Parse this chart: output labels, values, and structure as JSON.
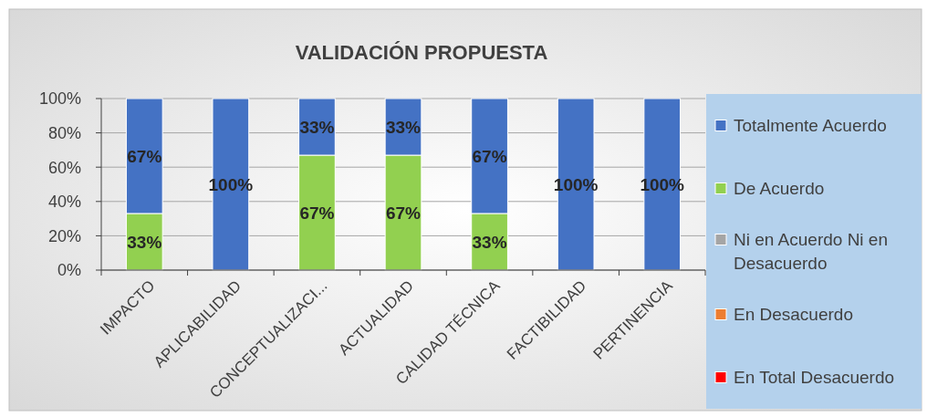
{
  "chart_data": {
    "type": "bar",
    "title": "VALIDACIÓN PROPUESTA",
    "stacked": true,
    "grid": "y",
    "legend": "right",
    "categories": [
      "IMPACTO",
      "APLICABILIDAD",
      "CONCEPTUALIZACI...",
      "ACTUALIDAD",
      "CALIDAD TÉCNICA",
      "FACTIBILIDAD",
      "PERTINENCIA"
    ],
    "ylim": [
      0,
      100
    ],
    "yticks": [
      {
        "value": 0,
        "label": "0%"
      },
      {
        "value": 20,
        "label": "20%"
      },
      {
        "value": 40,
        "label": "40%"
      },
      {
        "value": 60,
        "label": "60%"
      },
      {
        "value": 80,
        "label": "80%"
      },
      {
        "value": 100,
        "label": "100%"
      }
    ],
    "series": [
      {
        "name": "En Total Desacuerdo",
        "color": "#ff0000",
        "values": [
          0,
          0,
          0,
          0,
          0,
          0,
          0
        ]
      },
      {
        "name": "En Desacuerdo",
        "color": "#ed7d31",
        "values": [
          0,
          0,
          0,
          0,
          0,
          0,
          0
        ]
      },
      {
        "name": "Ni en Acuerdo Ni en Desacuerdo",
        "color": "#a5a5a5",
        "values": [
          0,
          0,
          0,
          0,
          0,
          0,
          0
        ]
      },
      {
        "name": "De Acuerdo",
        "color": "#92d050",
        "values": [
          33,
          0,
          67,
          67,
          33,
          0,
          0
        ],
        "value_labels": [
          "33%",
          null,
          "67%",
          "67%",
          "33%",
          null,
          null
        ]
      },
      {
        "name": "Totalmente Acuerdo",
        "color": "#4472c4",
        "values": [
          67,
          100,
          33,
          33,
          67,
          100,
          100
        ],
        "value_labels": [
          "67%",
          "100%",
          "33%",
          "33%",
          "67%",
          "100%",
          "100%"
        ]
      }
    ]
  }
}
